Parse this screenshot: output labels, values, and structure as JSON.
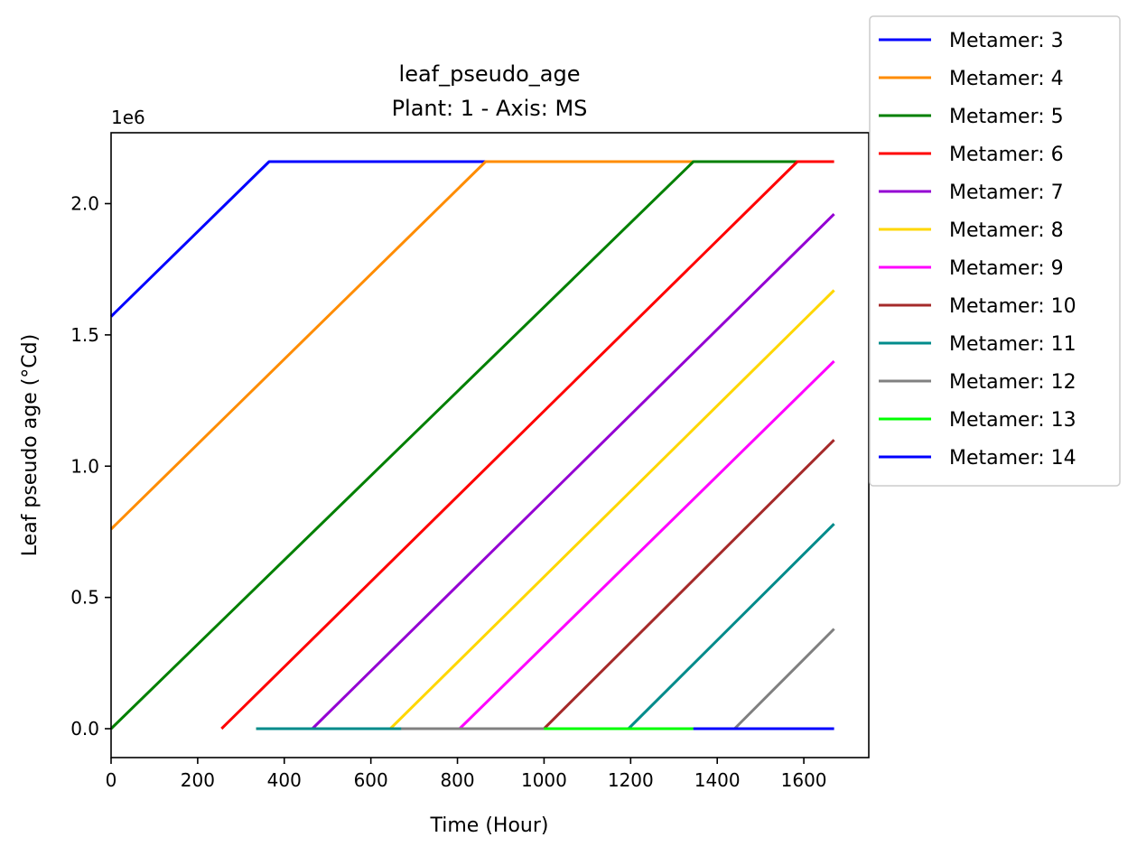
{
  "chart_data": {
    "type": "line",
    "title": "leaf_pseudo_age",
    "subtitle": "Plant: 1 - Axis: MS",
    "xlabel": "Time (Hour)",
    "ylabel": "Leaf pseudo age (°Cd)",
    "y_scale_label": "1e6",
    "xlim": [
      0,
      1750
    ],
    "ylim": [
      -0.11,
      2.27
    ],
    "x_ticks": [
      0,
      200,
      400,
      600,
      800,
      1000,
      1200,
      1400,
      1600
    ],
    "y_ticks": [
      0.0,
      0.5,
      1.0,
      1.5,
      2.0
    ],
    "y_tick_labels": [
      "0.0",
      "0.5",
      "1.0",
      "1.5",
      "2.0"
    ],
    "grid": false,
    "legend_position": "outside top-right",
    "series": [
      {
        "name": "Metamer: 3",
        "color": "#0000ff",
        "points": [
          [
            0,
            1.57
          ],
          [
            365,
            2.16
          ],
          [
            940,
            2.16
          ]
        ]
      },
      {
        "name": "Metamer: 4",
        "color": "#ff8c00",
        "points": [
          [
            0,
            0.76
          ],
          [
            865,
            2.16
          ],
          [
            1345,
            2.16
          ]
        ]
      },
      {
        "name": "Metamer: 5",
        "color": "#008000",
        "points": [
          [
            0,
            0.0
          ],
          [
            1345,
            2.16
          ],
          [
            1585,
            2.16
          ]
        ]
      },
      {
        "name": "Metamer: 6",
        "color": "#ff0000",
        "points": [
          [
            255,
            0.0
          ],
          [
            1585,
            2.16
          ],
          [
            1670,
            2.16
          ]
        ]
      },
      {
        "name": "Metamer: 7",
        "color": "#9400d3",
        "points": [
          [
            465,
            0.0
          ],
          [
            1670,
            1.96
          ]
        ]
      },
      {
        "name": "Metamer: 8",
        "color": "#ffd700",
        "points": [
          [
            335,
            0.0
          ],
          [
            645,
            0.0
          ],
          [
            1670,
            1.67
          ]
        ]
      },
      {
        "name": "Metamer: 9",
        "color": "#ff00ff",
        "points": [
          [
            805,
            0.0
          ],
          [
            1670,
            1.4
          ]
        ]
      },
      {
        "name": "Metamer: 10",
        "color": "#a52a2a",
        "points": [
          [
            1000,
            0.0
          ],
          [
            1670,
            1.1
          ]
        ]
      },
      {
        "name": "Metamer: 11",
        "color": "#008b8b",
        "points": [
          [
            335,
            0.0
          ],
          [
            670,
            0.0
          ],
          [
            1195,
            0.0
          ],
          [
            1670,
            0.78
          ]
        ]
      },
      {
        "name": "Metamer: 12",
        "color": "#808080",
        "points": [
          [
            670,
            0.0
          ],
          [
            1000,
            0.0
          ],
          [
            1440,
            0.0
          ],
          [
            1670,
            0.38
          ]
        ]
      },
      {
        "name": "Metamer: 13",
        "color": "#00ff00",
        "points": [
          [
            1000,
            0.0
          ],
          [
            1345,
            0.0
          ]
        ]
      },
      {
        "name": "Metamer: 14",
        "color": "#0000ff",
        "points": [
          [
            1345,
            0.0
          ],
          [
            1670,
            0.0
          ]
        ]
      }
    ]
  }
}
